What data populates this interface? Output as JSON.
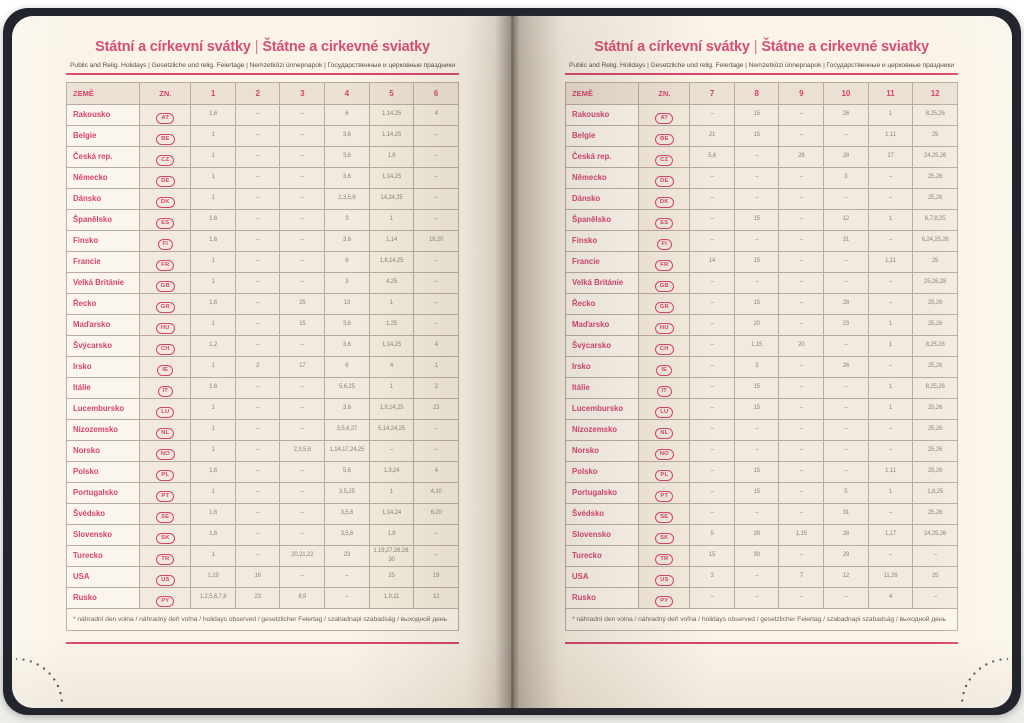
{
  "colors": {
    "accent": "#d6436f",
    "page_bg": "#faf3e6",
    "cover": "#23252e",
    "border": "#b6ab9e",
    "cell_text": "#8e8477",
    "subtitle_text": "#514d47",
    "footnote_text": "#6d675f",
    "dot_color": "#3a3a3a"
  },
  "header": {
    "title_cs": "Státní a církevní svátky",
    "divider": "|",
    "title_sk": "Štátne a cirkevné sviatky",
    "subtitle": "Public and Relig. Holidays | Gesetzliche und relig. Feiertage | Nemzetközi ünnepnapok | Государственные и церковные праздники"
  },
  "table": {
    "col_country": "ZEMĚ",
    "col_code": "ZN.",
    "months_left": [
      "1",
      "2",
      "3",
      "4",
      "5",
      "6"
    ],
    "months_right": [
      "7",
      "8",
      "9",
      "10",
      "11",
      "12"
    ],
    "footnote": "* náhradní den volna / náhradný deň voľna / holidays observed / gesetzlicher Feiertag / szabadnapi szabadság / выходной день",
    "rows": [
      {
        "country": "Rakousko",
        "code": "AT",
        "m1_6": [
          "1, 6",
          "–",
          "–",
          "6",
          "1, 14, 25",
          "4"
        ],
        "m7_12": [
          "–",
          "15",
          "–",
          "26",
          "1",
          "8, 25, 26"
        ]
      },
      {
        "country": "Belgie",
        "code": "BE",
        "m1_6": [
          "1",
          "–",
          "–",
          "3, 6",
          "1, 14, 25",
          "–"
        ],
        "m7_12": [
          "21",
          "15",
          "–",
          "–",
          "1, 11",
          "25"
        ]
      },
      {
        "country": "Česká rep.",
        "code": "CZ",
        "m1_6": [
          "1",
          "–",
          "–",
          "3, 6",
          "1, 8",
          "–"
        ],
        "m7_12": [
          "5, 6",
          "–",
          "28",
          "28",
          "17",
          "24, 25, 26"
        ]
      },
      {
        "country": "Německo",
        "code": "DE",
        "m1_6": [
          "1",
          "–",
          "–",
          "3, 6",
          "1, 14, 25",
          "–"
        ],
        "m7_12": [
          "–",
          "–",
          "–",
          "3",
          "–",
          "25, 26"
        ]
      },
      {
        "country": "Dánsko",
        "code": "DK",
        "m1_6": [
          "1",
          "–",
          "–",
          "2, 3, 5, 6",
          "14, 24, 25",
          "–"
        ],
        "m7_12": [
          "–",
          "–",
          "–",
          "–",
          "–",
          "25, 26"
        ]
      },
      {
        "country": "Španělsko",
        "code": "ES",
        "m1_6": [
          "1, 6",
          "–",
          "–",
          "3",
          "1",
          "–"
        ],
        "m7_12": [
          "–",
          "15",
          "–",
          "12",
          "1",
          "6, 7, 8, 25"
        ]
      },
      {
        "country": "Finsko",
        "code": "FI",
        "m1_6": [
          "1, 6",
          "–",
          "–",
          "3, 6",
          "1, 14",
          "19, 20"
        ],
        "m7_12": [
          "–",
          "–",
          "–",
          "31",
          "–",
          "6, 24, 25, 26"
        ]
      },
      {
        "country": "Francie",
        "code": "FR",
        "m1_6": [
          "1",
          "–",
          "–",
          "6",
          "1, 8, 14, 25",
          "–"
        ],
        "m7_12": [
          "14",
          "15",
          "–",
          "–",
          "1, 11",
          "25"
        ]
      },
      {
        "country": "Velká Británie",
        "code": "GB",
        "m1_6": [
          "1",
          "–",
          "–",
          "3",
          "4, 25",
          "–"
        ],
        "m7_12": [
          "–",
          "–",
          "–",
          "–",
          "–",
          "25, 26, 28"
        ]
      },
      {
        "country": "Řecko",
        "code": "GR",
        "m1_6": [
          "1, 6",
          "–",
          "25",
          "13",
          "1",
          "–"
        ],
        "m7_12": [
          "–",
          "15",
          "–",
          "28",
          "–",
          "25, 26"
        ]
      },
      {
        "country": "Maďarsko",
        "code": "HU",
        "m1_6": [
          "1",
          "–",
          "15",
          "3, 6",
          "1, 25",
          "–"
        ],
        "m7_12": [
          "–",
          "20",
          "–",
          "23",
          "1",
          "25, 26"
        ]
      },
      {
        "country": "Švýcarsko",
        "code": "CH",
        "m1_6": [
          "1, 2",
          "–",
          "–",
          "3, 6",
          "1, 14, 25",
          "4"
        ],
        "m7_12": [
          "–",
          "1, 15",
          "20",
          "–",
          "1",
          "8, 25, 26"
        ]
      },
      {
        "country": "Irsko",
        "code": "IE",
        "m1_6": [
          "1",
          "2",
          "17",
          "6",
          "4",
          "1"
        ],
        "m7_12": [
          "–",
          "3",
          "–",
          "26",
          "–",
          "25, 26"
        ]
      },
      {
        "country": "Itálie",
        "code": "IT",
        "m1_6": [
          "1, 6",
          "–",
          "–",
          "5, 6, 25",
          "1",
          "2"
        ],
        "m7_12": [
          "–",
          "15",
          "–",
          "–",
          "1",
          "8, 25, 26"
        ]
      },
      {
        "country": "Lucembursko",
        "code": "LU",
        "m1_6": [
          "1",
          "–",
          "–",
          "3, 6",
          "1, 9, 14, 25",
          "23"
        ],
        "m7_12": [
          "–",
          "15",
          "–",
          "–",
          "1",
          "25, 26"
        ]
      },
      {
        "country": "Nizozemsko",
        "code": "NL",
        "m1_6": [
          "1",
          "–",
          "–",
          "3, 5, 6, 27",
          "5, 14, 24, 25",
          "–"
        ],
        "m7_12": [
          "–",
          "–",
          "–",
          "–",
          "–",
          "25, 26"
        ]
      },
      {
        "country": "Norsko",
        "code": "NO",
        "m1_6": [
          "1",
          "–",
          "2, 3, 5, 6",
          "1, 14, 17, 24, 25",
          "–",
          "–"
        ],
        "m7_12": [
          "–",
          "–",
          "–",
          "–",
          "–",
          "25, 26"
        ]
      },
      {
        "country": "Polsko",
        "code": "PL",
        "m1_6": [
          "1, 6",
          "–",
          "–",
          "5, 6",
          "1, 3, 24",
          "4"
        ],
        "m7_12": [
          "–",
          "15",
          "–",
          "–",
          "1, 11",
          "25, 26"
        ]
      },
      {
        "country": "Portugalsko",
        "code": "PT",
        "m1_6": [
          "1",
          "–",
          "–",
          "3, 5, 25",
          "1",
          "4, 10"
        ],
        "m7_12": [
          "–",
          "15",
          "–",
          "5",
          "1",
          "1, 8, 25"
        ]
      },
      {
        "country": "Švédsko",
        "code": "SE",
        "m1_6": [
          "1, 6",
          "–",
          "–",
          "3, 5, 6",
          "1, 14, 24",
          "6, 20"
        ],
        "m7_12": [
          "–",
          "–",
          "–",
          "31",
          "–",
          "25, 26"
        ]
      },
      {
        "country": "Slovensko",
        "code": "SK",
        "m1_6": [
          "1, 6",
          "–",
          "–",
          "3, 5, 6",
          "1, 8",
          "–"
        ],
        "m7_12": [
          "5",
          "29",
          "1, 15",
          "28",
          "1, 17",
          "24, 25, 26"
        ]
      },
      {
        "country": "Turecko",
        "code": "TR",
        "m1_6": [
          "1",
          "–",
          "20, 21, 22",
          "23",
          "1, 19, 27, 28, 29, 30",
          "–"
        ],
        "m7_12": [
          "15",
          "30",
          "–",
          "29",
          "–",
          "–"
        ]
      },
      {
        "country": "USA",
        "code": "US",
        "m1_6": [
          "1, 19",
          "16",
          "–",
          "–",
          "25",
          "19"
        ],
        "m7_12": [
          "3",
          "–",
          "7",
          "12",
          "11, 26",
          "25"
        ]
      },
      {
        "country": "Rusko",
        "code": "PY",
        "m1_6": [
          "1, 2, 5, 6, 7, 8",
          "23",
          "8, 9",
          "–",
          "1, 9, 11",
          "12"
        ],
        "m7_12": [
          "–",
          "–",
          "–",
          "–",
          "4",
          "–"
        ]
      }
    ]
  }
}
